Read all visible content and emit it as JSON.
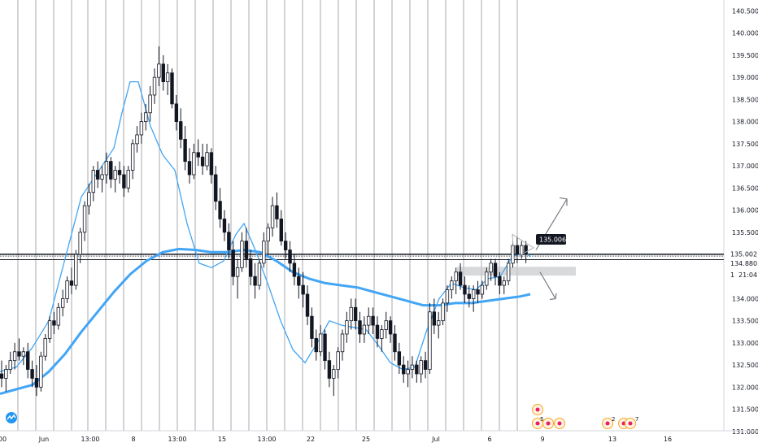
{
  "chart_data": {
    "type": "candlestick",
    "title": "",
    "xlabel": "",
    "ylabel": "",
    "ylim": [
      131.0,
      140.6
    ],
    "y_ticks": [
      "140.500",
      "140.000",
      "139.500",
      "139.000",
      "138.500",
      "138.000",
      "137.500",
      "137.000",
      "136.500",
      "136.000",
      "135.500",
      "135.000",
      "134.500",
      "134.000",
      "133.500",
      "133.000",
      "132.500",
      "132.000",
      "131.500",
      "131.000"
    ],
    "x_ticks": [
      "00",
      "Jun",
      "13:00",
      "8",
      "13:00",
      "15",
      "13:00",
      "22",
      "25",
      "Jul",
      "6",
      "9",
      "13",
      "16"
    ],
    "price_labels": {
      "callout": "135.006",
      "line_upper": "135.002",
      "line_lower": "134.880",
      "countdown": "21:04",
      "partial": "1"
    },
    "ohlc": [
      [
        132.3,
        132.6,
        132.0,
        132.2
      ],
      [
        132.2,
        132.5,
        131.9,
        132.4
      ],
      [
        132.4,
        132.8,
        132.3,
        132.6
      ],
      [
        132.6,
        133.0,
        132.4,
        132.8
      ],
      [
        132.8,
        133.1,
        132.6,
        132.7
      ],
      [
        132.7,
        132.9,
        132.5,
        132.8
      ],
      [
        132.8,
        133.0,
        132.2,
        132.4
      ],
      [
        132.4,
        132.6,
        132.0,
        132.2
      ],
      [
        132.2,
        132.5,
        131.8,
        132.0
      ],
      [
        132.0,
        132.8,
        131.9,
        132.7
      ],
      [
        132.7,
        133.2,
        132.6,
        133.1
      ],
      [
        133.1,
        133.6,
        133.0,
        133.5
      ],
      [
        133.5,
        133.7,
        133.2,
        133.4
      ],
      [
        133.4,
        133.9,
        133.3,
        133.8
      ],
      [
        133.8,
        134.2,
        133.6,
        134.0
      ],
      [
        134.0,
        134.5,
        133.9,
        134.4
      ],
      [
        134.4,
        134.7,
        134.1,
        134.3
      ],
      [
        134.3,
        135.1,
        134.2,
        135.0
      ],
      [
        135.0,
        135.6,
        134.8,
        135.5
      ],
      [
        135.5,
        136.2,
        135.3,
        136.1
      ],
      [
        136.1,
        136.6,
        135.9,
        136.4
      ],
      [
        136.4,
        137.0,
        136.2,
        136.9
      ],
      [
        136.9,
        137.1,
        136.5,
        136.7
      ],
      [
        136.7,
        137.0,
        136.4,
        136.8
      ],
      [
        136.8,
        137.3,
        136.6,
        137.1
      ],
      [
        137.1,
        137.2,
        136.5,
        136.7
      ],
      [
        136.7,
        137.0,
        136.4,
        136.9
      ],
      [
        136.9,
        137.1,
        136.6,
        136.8
      ],
      [
        136.8,
        137.0,
        136.3,
        136.5
      ],
      [
        136.5,
        137.0,
        136.4,
        136.9
      ],
      [
        136.9,
        137.6,
        136.7,
        137.5
      ],
      [
        137.5,
        137.9,
        137.3,
        137.7
      ],
      [
        137.7,
        138.2,
        137.5,
        138.0
      ],
      [
        138.0,
        138.4,
        137.8,
        138.2
      ],
      [
        138.2,
        138.8,
        138.0,
        138.6
      ],
      [
        138.6,
        139.2,
        138.4,
        139.0
      ],
      [
        139.0,
        139.7,
        138.8,
        139.3
      ],
      [
        139.3,
        139.5,
        138.7,
        138.9
      ],
      [
        138.9,
        139.3,
        138.6,
        139.1
      ],
      [
        139.1,
        139.2,
        138.3,
        138.4
      ],
      [
        138.4,
        138.6,
        137.8,
        138.0
      ],
      [
        138.0,
        138.3,
        137.4,
        137.6
      ],
      [
        137.6,
        137.9,
        136.9,
        137.1
      ],
      [
        137.1,
        137.4,
        136.6,
        136.8
      ],
      [
        136.8,
        137.5,
        136.7,
        137.3
      ],
      [
        137.3,
        137.6,
        137.0,
        137.2
      ],
      [
        137.2,
        137.5,
        136.8,
        137.0
      ],
      [
        137.0,
        137.5,
        136.9,
        137.3
      ],
      [
        137.3,
        137.4,
        136.6,
        136.8
      ],
      [
        136.8,
        137.0,
        136.0,
        136.2
      ],
      [
        136.2,
        136.5,
        135.6,
        135.8
      ],
      [
        135.8,
        136.0,
        135.3,
        135.5
      ],
      [
        135.5,
        135.7,
        134.9,
        135.1
      ],
      [
        135.1,
        135.3,
        134.3,
        134.5
      ],
      [
        134.5,
        134.9,
        134.0,
        134.7
      ],
      [
        134.7,
        135.5,
        134.6,
        135.3
      ],
      [
        135.3,
        135.6,
        134.7,
        134.9
      ],
      [
        134.9,
        135.1,
        134.3,
        134.5
      ],
      [
        134.5,
        134.8,
        134.0,
        134.3
      ],
      [
        134.3,
        134.9,
        134.2,
        134.8
      ],
      [
        134.8,
        135.5,
        134.7,
        135.3
      ],
      [
        135.3,
        135.7,
        135.0,
        135.6
      ],
      [
        135.6,
        136.3,
        135.4,
        136.1
      ],
      [
        136.1,
        136.4,
        135.6,
        135.8
      ],
      [
        135.8,
        136.0,
        135.2,
        135.3
      ],
      [
        135.3,
        135.5,
        134.9,
        135.1
      ],
      [
        135.1,
        135.3,
        134.6,
        134.8
      ],
      [
        134.8,
        135.0,
        134.3,
        134.5
      ],
      [
        134.5,
        134.7,
        134.0,
        134.3
      ],
      [
        134.3,
        134.6,
        133.8,
        134.1
      ],
      [
        134.1,
        134.3,
        133.4,
        133.6
      ],
      [
        133.6,
        133.8,
        132.9,
        133.1
      ],
      [
        133.1,
        133.3,
        132.6,
        132.8
      ],
      [
        132.8,
        133.4,
        132.7,
        133.2
      ],
      [
        133.2,
        133.3,
        132.4,
        132.6
      ],
      [
        132.6,
        132.8,
        132.0,
        132.2
      ],
      [
        132.2,
        132.5,
        131.8,
        132.4
      ],
      [
        132.4,
        132.9,
        132.2,
        132.8
      ],
      [
        132.8,
        133.3,
        132.6,
        133.2
      ],
      [
        133.2,
        133.7,
        133.0,
        133.5
      ],
      [
        133.5,
        134.0,
        133.3,
        133.8
      ],
      [
        133.8,
        134.0,
        133.3,
        133.5
      ],
      [
        133.5,
        133.7,
        133.0,
        133.2
      ],
      [
        133.2,
        133.6,
        133.0,
        133.4
      ],
      [
        133.4,
        133.8,
        133.2,
        133.6
      ],
      [
        133.6,
        133.8,
        133.2,
        133.4
      ],
      [
        133.4,
        133.6,
        132.9,
        133.1
      ],
      [
        133.1,
        133.4,
        132.8,
        133.3
      ],
      [
        133.3,
        133.7,
        133.1,
        133.5
      ],
      [
        133.5,
        133.6,
        133.0,
        133.2
      ],
      [
        133.2,
        133.4,
        132.6,
        132.8
      ],
      [
        132.8,
        133.0,
        132.3,
        132.5
      ],
      [
        132.5,
        132.7,
        132.1,
        132.3
      ],
      [
        132.3,
        132.6,
        132.0,
        132.4
      ],
      [
        132.4,
        132.7,
        132.2,
        132.5
      ],
      [
        132.5,
        132.6,
        132.1,
        132.3
      ],
      [
        132.3,
        132.7,
        132.1,
        132.6
      ],
      [
        132.6,
        132.8,
        132.2,
        132.4
      ],
      [
        132.4,
        133.9,
        132.3,
        133.7
      ],
      [
        133.7,
        134.0,
        133.2,
        133.4
      ],
      [
        133.4,
        133.7,
        133.1,
        133.5
      ],
      [
        133.5,
        134.0,
        133.4,
        133.9
      ],
      [
        133.9,
        134.3,
        133.7,
        134.2
      ],
      [
        134.2,
        134.5,
        134.0,
        134.4
      ],
      [
        134.4,
        134.7,
        134.1,
        134.6
      ],
      [
        134.6,
        134.8,
        134.2,
        134.3
      ],
      [
        134.3,
        134.5,
        133.9,
        134.1
      ],
      [
        134.1,
        134.3,
        133.8,
        134.0
      ],
      [
        134.0,
        134.3,
        133.7,
        134.2
      ],
      [
        134.2,
        134.4,
        133.9,
        134.1
      ],
      [
        134.1,
        134.4,
        134.0,
        134.3
      ],
      [
        134.3,
        134.7,
        134.2,
        134.6
      ],
      [
        134.6,
        134.9,
        134.4,
        134.8
      ],
      [
        134.8,
        134.9,
        134.3,
        134.5
      ],
      [
        134.5,
        134.6,
        134.1,
        134.3
      ],
      [
        134.3,
        134.5,
        134.1,
        134.4
      ],
      [
        134.4,
        134.9,
        134.3,
        134.8
      ],
      [
        134.8,
        135.3,
        134.7,
        135.2
      ],
      [
        135.2,
        135.4,
        134.8,
        135.0
      ],
      [
        135.0,
        135.3,
        134.9,
        135.2
      ],
      [
        135.2,
        135.3,
        134.8,
        135.0
      ]
    ],
    "series": [
      {
        "name": "",
        "color": "#42a5f5",
        "values": [
          [
            0,
            131.85
          ],
          [
            20,
            131.95
          ],
          [
            40,
            132.05
          ],
          [
            60,
            132.35
          ],
          [
            80,
            132.75
          ],
          [
            100,
            133.25
          ],
          [
            120,
            133.7
          ],
          [
            140,
            134.15
          ],
          [
            160,
            134.55
          ],
          [
            180,
            134.85
          ],
          [
            200,
            135.05
          ],
          [
            220,
            135.12
          ],
          [
            240,
            135.1
          ],
          [
            260,
            135.05
          ],
          [
            280,
            135.05
          ],
          [
            300,
            135.1
          ],
          [
            320,
            135.05
          ],
          [
            340,
            134.85
          ],
          [
            360,
            134.6
          ],
          [
            380,
            134.45
          ],
          [
            400,
            134.35
          ],
          [
            420,
            134.3
          ],
          [
            440,
            134.25
          ],
          [
            460,
            134.15
          ],
          [
            480,
            134.05
          ],
          [
            500,
            133.95
          ],
          [
            520,
            133.85
          ],
          [
            540,
            133.85
          ],
          [
            560,
            133.9
          ],
          [
            580,
            133.9
          ],
          [
            600,
            133.95
          ],
          [
            620,
            134.0
          ],
          [
            640,
            134.05
          ],
          [
            652,
            134.1
          ]
        ]
      },
      {
        "name": "",
        "color": "#42a5f5",
        "values": [
          [
            0,
            132.35
          ],
          [
            20,
            132.45
          ],
          [
            40,
            132.9
          ],
          [
            60,
            133.5
          ],
          [
            80,
            134.9
          ],
          [
            100,
            136.3
          ],
          [
            120,
            136.85
          ],
          [
            140,
            137.4
          ],
          [
            150,
            138.2
          ],
          [
            160,
            138.9
          ],
          [
            170,
            138.9
          ],
          [
            185,
            137.9
          ],
          [
            200,
            137.25
          ],
          [
            215,
            136.9
          ],
          [
            230,
            135.7
          ],
          [
            245,
            134.8
          ],
          [
            260,
            134.7
          ],
          [
            275,
            134.85
          ],
          [
            290,
            135.45
          ],
          [
            300,
            135.7
          ],
          [
            315,
            135.05
          ],
          [
            330,
            134.3
          ],
          [
            345,
            133.5
          ],
          [
            360,
            132.85
          ],
          [
            375,
            132.55
          ],
          [
            390,
            133.0
          ],
          [
            405,
            133.5
          ],
          [
            420,
            133.4
          ],
          [
            435,
            133.35
          ],
          [
            450,
            133.3
          ],
          [
            465,
            132.95
          ],
          [
            480,
            132.55
          ],
          [
            495,
            132.4
          ],
          [
            510,
            132.45
          ],
          [
            525,
            133.3
          ],
          [
            540,
            134.0
          ],
          [
            555,
            134.35
          ],
          [
            570,
            134.25
          ],
          [
            585,
            134.2
          ],
          [
            600,
            134.45
          ],
          [
            615,
            134.5
          ],
          [
            630,
            134.95
          ],
          [
            645,
            135.05
          ],
          [
            652,
            134.95
          ]
        ]
      }
    ],
    "annotations": [
      "5",
      "2",
      "7"
    ]
  }
}
